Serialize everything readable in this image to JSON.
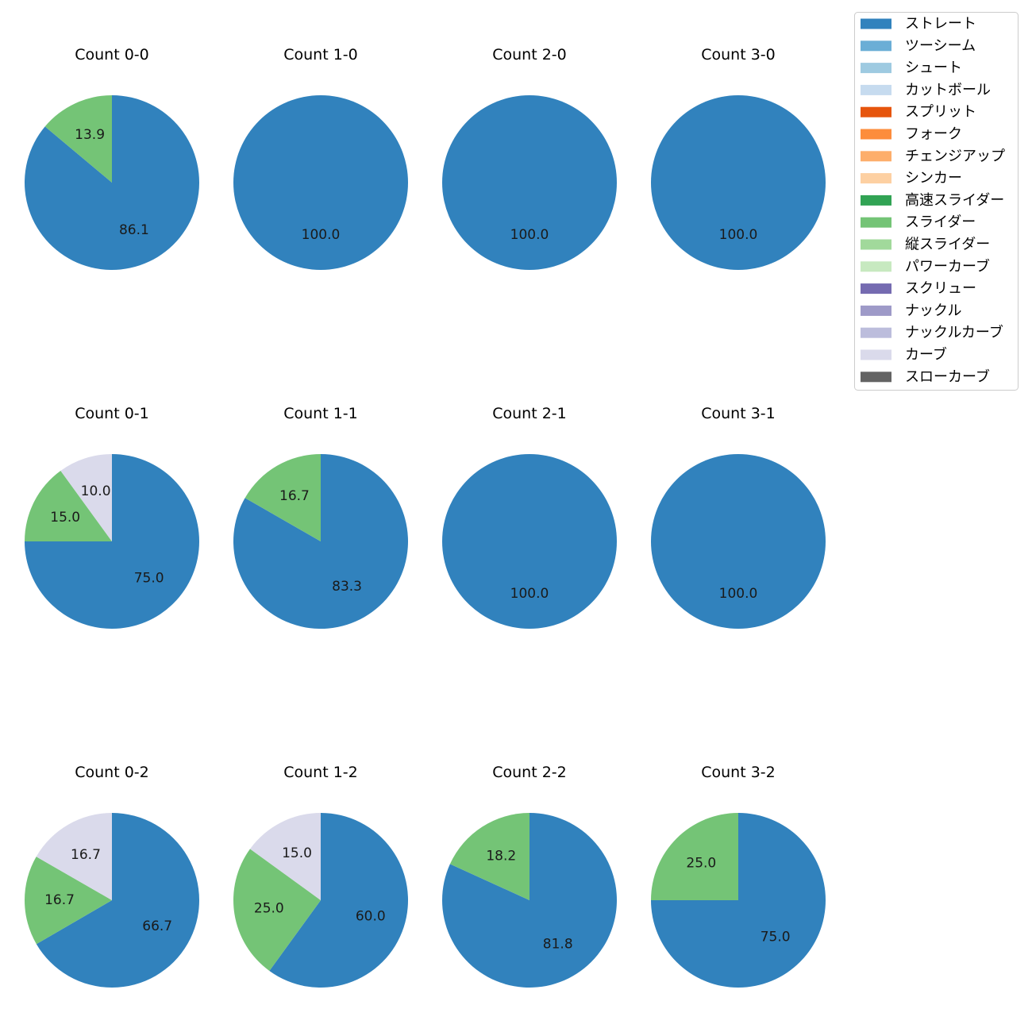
{
  "chart_data": {
    "type": "pie",
    "legend": {
      "placement": "top-right",
      "entries": [
        {
          "label": "ストレート",
          "color": "#3182bd"
        },
        {
          "label": "ツーシーム",
          "color": "#6baed6"
        },
        {
          "label": "シュート",
          "color": "#9ecae1"
        },
        {
          "label": "カットボール",
          "color": "#c6dbef"
        },
        {
          "label": "スプリット",
          "color": "#e6550d"
        },
        {
          "label": "フォーク",
          "color": "#fd8d3c"
        },
        {
          "label": "チェンジアップ",
          "color": "#fdae6b"
        },
        {
          "label": "シンカー",
          "color": "#fdd0a2"
        },
        {
          "label": "高速スライダー",
          "color": "#31a354"
        },
        {
          "label": "スライダー",
          "color": "#74c476"
        },
        {
          "label": "縦スライダー",
          "color": "#a1d99b"
        },
        {
          "label": "パワーカーブ",
          "color": "#c7e9c0"
        },
        {
          "label": "スクリュー",
          "color": "#756bb1"
        },
        {
          "label": "ナックル",
          "color": "#9e9ac8"
        },
        {
          "label": "ナックルカーブ",
          "color": "#bcbddc"
        },
        {
          "label": "カーブ",
          "color": "#dadaeb"
        },
        {
          "label": "スローカーブ",
          "color": "#636363"
        }
      ]
    },
    "charts": [
      {
        "title": "Count 0-0",
        "slices": [
          {
            "pitch": "ストレート",
            "value": 86.1
          },
          {
            "pitch": "スライダー",
            "value": 13.9
          }
        ]
      },
      {
        "title": "Count 1-0",
        "slices": [
          {
            "pitch": "ストレート",
            "value": 100.0
          }
        ]
      },
      {
        "title": "Count 2-0",
        "slices": [
          {
            "pitch": "ストレート",
            "value": 100.0
          }
        ]
      },
      {
        "title": "Count 3-0",
        "slices": [
          {
            "pitch": "ストレート",
            "value": 100.0
          }
        ]
      },
      {
        "title": "Count 0-1",
        "slices": [
          {
            "pitch": "ストレート",
            "value": 75.0
          },
          {
            "pitch": "スライダー",
            "value": 15.0
          },
          {
            "pitch": "カーブ",
            "value": 10.0
          }
        ]
      },
      {
        "title": "Count 1-1",
        "slices": [
          {
            "pitch": "ストレート",
            "value": 83.3
          },
          {
            "pitch": "スライダー",
            "value": 16.7
          }
        ]
      },
      {
        "title": "Count 2-1",
        "slices": [
          {
            "pitch": "ストレート",
            "value": 100.0
          }
        ]
      },
      {
        "title": "Count 3-1",
        "slices": [
          {
            "pitch": "ストレート",
            "value": 100.0
          }
        ]
      },
      {
        "title": "Count 0-2",
        "slices": [
          {
            "pitch": "ストレート",
            "value": 66.7
          },
          {
            "pitch": "スライダー",
            "value": 16.7
          },
          {
            "pitch": "カーブ",
            "value": 16.7
          }
        ]
      },
      {
        "title": "Count 1-2",
        "slices": [
          {
            "pitch": "ストレート",
            "value": 60.0
          },
          {
            "pitch": "スライダー",
            "value": 25.0
          },
          {
            "pitch": "カーブ",
            "value": 15.0
          }
        ]
      },
      {
        "title": "Count 2-2",
        "slices": [
          {
            "pitch": "ストレート",
            "value": 81.8
          },
          {
            "pitch": "スライダー",
            "value": 18.2
          }
        ]
      },
      {
        "title": "Count 3-2",
        "slices": [
          {
            "pitch": "ストレート",
            "value": 75.0
          },
          {
            "pitch": "スライダー",
            "value": 25.0
          }
        ]
      }
    ]
  }
}
